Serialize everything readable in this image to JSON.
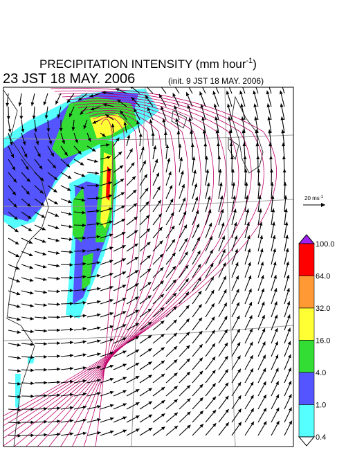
{
  "title": {
    "text": "PRECIPITATION INTENSITY (mm hour",
    "superscript": "-1",
    "close": ")"
  },
  "subtitle": {
    "time": "23 JST 18 MAY. 2006",
    "init": "(init. 9 JST 18 MAY. 2006)"
  },
  "vector_legend": {
    "text": "20 ms",
    "superscript": "-1"
  },
  "colorbar": {
    "labels": [
      "100.0",
      "64.0",
      "32.0",
      "16.0",
      "4.0",
      "1.0",
      "0.4"
    ],
    "colors": [
      "#ff0000",
      "#ff9933",
      "#ffff33",
      "#33dd33",
      "#5555ff",
      "#55ffff"
    ],
    "over_color": "#a020f0",
    "under_color": "#ffffff"
  }
}
